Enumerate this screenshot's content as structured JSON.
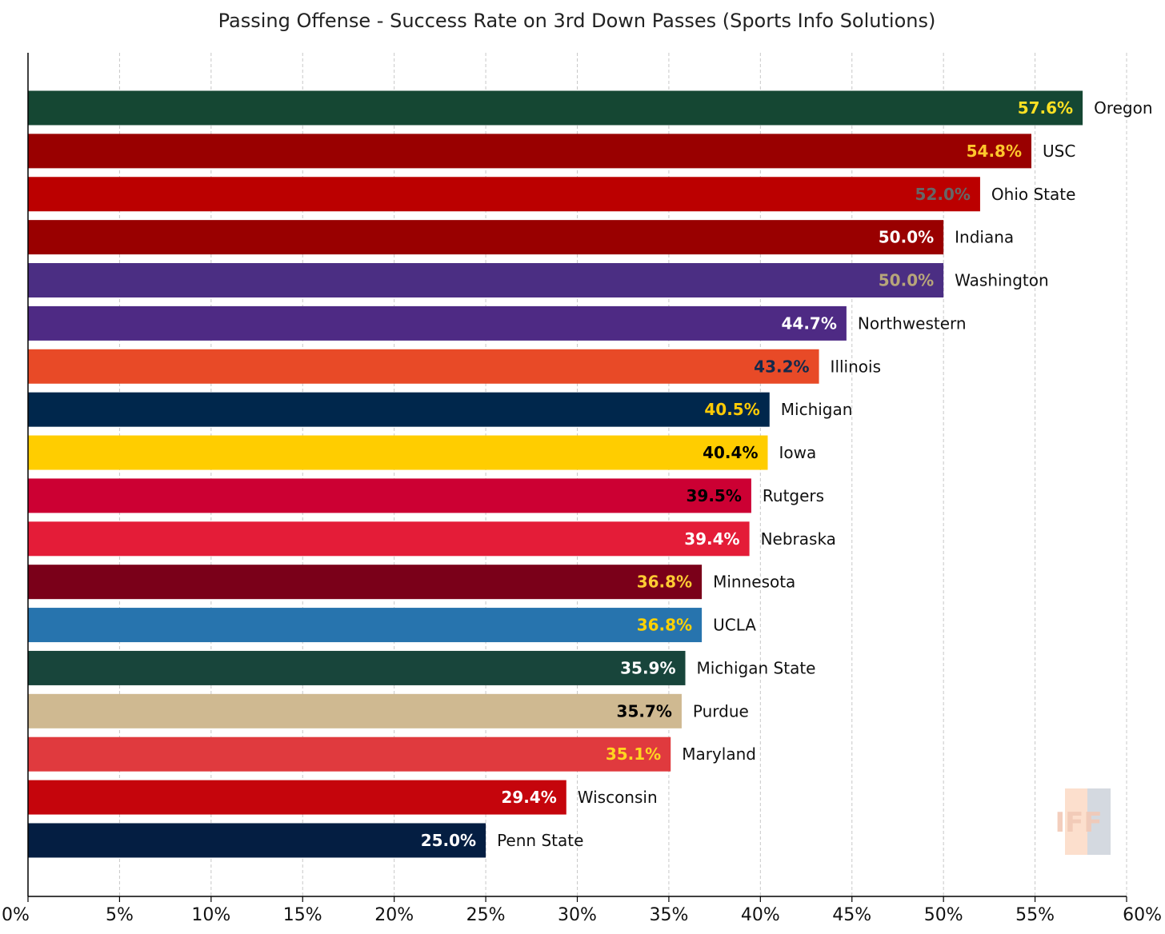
{
  "chart_data": {
    "type": "bar",
    "orientation": "horizontal",
    "title": "Passing Offense - Success Rate on 3rd Down Passes (Sports Info Solutions)",
    "xlabel": "",
    "ylabel": "",
    "xlim": [
      0,
      60
    ],
    "x_ticks": [
      0,
      5,
      10,
      15,
      20,
      25,
      30,
      35,
      40,
      45,
      50,
      55,
      60
    ],
    "x_tick_labels": [
      "0%",
      "5%",
      "10%",
      "15%",
      "20%",
      "25%",
      "30%",
      "35%",
      "40%",
      "45%",
      "50%",
      "55%",
      "60%"
    ],
    "grid": "vertical dashed",
    "watermark": "IFF",
    "bars": [
      {
        "team": "Oregon",
        "value": 57.6,
        "label": "57.6%",
        "color": "#154733",
        "label_color": "#FEE123"
      },
      {
        "team": "USC",
        "value": 54.8,
        "label": "54.8%",
        "color": "#990000",
        "label_color": "#FFC72C"
      },
      {
        "team": "Ohio State",
        "value": 52.0,
        "label": "52.0%",
        "color": "#BB0000",
        "label_color": "#666666"
      },
      {
        "team": "Indiana",
        "value": 50.0,
        "label": "50.0%",
        "color": "#990000",
        "label_color": "#FFFFFF"
      },
      {
        "team": "Washington",
        "value": 50.0,
        "label": "50.0%",
        "color": "#4B2E83",
        "label_color": "#B7A57A"
      },
      {
        "team": "Northwestern",
        "value": 44.7,
        "label": "44.7%",
        "color": "#4E2A84",
        "label_color": "#FFFFFF"
      },
      {
        "team": "Illinois",
        "value": 43.2,
        "label": "43.2%",
        "color": "#E84A27",
        "label_color": "#13294B"
      },
      {
        "team": "Michigan",
        "value": 40.5,
        "label": "40.5%",
        "color": "#00274C",
        "label_color": "#FFCB05"
      },
      {
        "team": "Iowa",
        "value": 40.4,
        "label": "40.4%",
        "color": "#FFCD00",
        "label_color": "#000000"
      },
      {
        "team": "Rutgers",
        "value": 39.5,
        "label": "39.5%",
        "color": "#CC0033",
        "label_color": "#000000"
      },
      {
        "team": "Nebraska",
        "value": 39.4,
        "label": "39.4%",
        "color": "#E41C38",
        "label_color": "#FFFFFF"
      },
      {
        "team": "Minnesota",
        "value": 36.8,
        "label": "36.8%",
        "color": "#7A0019",
        "label_color": "#FFCC33"
      },
      {
        "team": "UCLA",
        "value": 36.8,
        "label": "36.8%",
        "color": "#2774AE",
        "label_color": "#FFD100"
      },
      {
        "team": "Michigan State",
        "value": 35.9,
        "label": "35.9%",
        "color": "#18453B",
        "label_color": "#FFFFFF"
      },
      {
        "team": "Purdue",
        "value": 35.7,
        "label": "35.7%",
        "color": "#CFB991",
        "label_color": "#000000"
      },
      {
        "team": "Maryland",
        "value": 35.1,
        "label": "35.1%",
        "color": "#E03A3E",
        "label_color": "#FFD520"
      },
      {
        "team": "Wisconsin",
        "value": 29.4,
        "label": "29.4%",
        "color": "#C5050C",
        "label_color": "#FFFFFF"
      },
      {
        "team": "Penn State",
        "value": 25.0,
        "label": "25.0%",
        "color": "#041E42",
        "label_color": "#FFFFFF"
      }
    ]
  }
}
